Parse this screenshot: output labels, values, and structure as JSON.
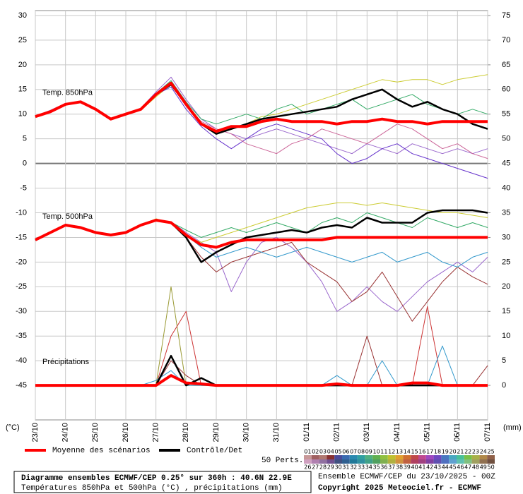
{
  "chart_data": {
    "type": "line",
    "title": "Diagramme ensembles ECMWF/CEP 0.25° sur 360h : 40.6N 22.9E",
    "subtitle": "Températures 850hPa et 500hPa (°C) , précipitations (mm)",
    "run_label": "Ensemble ECMWF/CEP du 23/10/2025 - 00Z",
    "copyright": "Copyright 2025 Meteociel.fr - ECMWF",
    "y_unit": "(°C)",
    "y2_unit": "(mm)",
    "members_label": "50 Perts.",
    "grid": true,
    "ylim": [
      -52,
      31
    ],
    "yticks": [
      -45,
      -40,
      -35,
      -30,
      -25,
      -20,
      -15,
      -10,
      -5,
      0,
      5,
      10,
      15,
      20,
      25,
      30
    ],
    "y2lim": [
      -7,
      76
    ],
    "y2ticks": [
      0,
      5,
      10,
      15,
      20,
      25,
      30,
      35,
      40,
      45,
      50,
      55,
      60,
      65,
      70,
      75
    ],
    "categories": [
      "23/10",
      null,
      "24/10",
      null,
      "25/10",
      null,
      "26/10",
      null,
      "27/10",
      null,
      "28/10",
      null,
      "29/10",
      null,
      "30/10",
      null,
      "31/10",
      null,
      "01/11",
      null,
      "02/11",
      null,
      "03/11",
      null,
      "04/11",
      null,
      "05/11",
      null,
      "06/11",
      null,
      "07/11"
    ],
    "panels": [
      {
        "label": "Temp. 850hPa",
        "series": [
          {
            "color": "#9966cc",
            "values": [
              9.6,
              10.8,
              12.2,
              12.4,
              11,
              8.8,
              10,
              11.2,
              14.5,
              17.5,
              13,
              9,
              7,
              6,
              5,
              6,
              7,
              6,
              5,
              4,
              3,
              2,
              4,
              3,
              2,
              4,
              3,
              2,
              3,
              2,
              3
            ]
          },
          {
            "color": "#cccc33",
            "values": [
              9.4,
              10.4,
              11.8,
              12.6,
              11.2,
              9.2,
              10.2,
              10.8,
              13.5,
              16,
              12,
              8,
              6.5,
              7,
              8,
              9.5,
              10,
              11,
              12,
              13,
              14,
              15,
              16,
              17,
              16.5,
              17,
              17,
              16,
              17,
              17.5,
              18
            ]
          },
          {
            "color": "#6633cc",
            "values": [
              9.5,
              10.6,
              12,
              12.3,
              10.8,
              9,
              9.8,
              11,
              14,
              15.5,
              11,
              7.5,
              5,
              3,
              5,
              7,
              8,
              7,
              6,
              5,
              2,
              0,
              1,
              3,
              4,
              2,
              1,
              0,
              -1,
              -2,
              -3
            ]
          },
          {
            "color": "#33aa66",
            "values": [
              9.5,
              10.5,
              12.1,
              12.5,
              11.1,
              9.1,
              10.1,
              11.1,
              14.2,
              16.8,
              12.5,
              9,
              8,
              9,
              10,
              9,
              11,
              12,
              10,
              11,
              12,
              13,
              11,
              12,
              13,
              14,
              12,
              11,
              10,
              11,
              10
            ]
          },
          {
            "color": "#cc6699",
            "values": [
              9.5,
              10.5,
              11.9,
              12.5,
              11,
              9,
              9.9,
              10.9,
              13.8,
              16.2,
              12,
              8.5,
              7,
              6,
              4,
              3,
              2,
              4,
              5,
              7,
              6,
              5,
              4,
              6,
              8,
              7,
              5,
              3,
              4,
              2,
              1
            ]
          },
          {
            "name": "Contrôle/Det",
            "color": "#000000",
            "values": [
              9.5,
              10.5,
              12,
              12.5,
              11,
              9,
              10,
              11,
              14,
              16,
              12,
              8,
              6,
              7,
              8,
              9,
              9.5,
              10,
              10.5,
              11,
              11.5,
              13,
              14,
              15,
              13,
              11.5,
              12.5,
              11,
              10,
              8,
              7
            ]
          },
          {
            "name": "Moyenne des scénarios",
            "color": "#ff0000",
            "values": [
              9.5,
              10.5,
              12,
              12.5,
              11,
              9,
              10,
              11,
              14,
              16.3,
              12,
              8,
              6.5,
              7.5,
              7.5,
              8.5,
              9,
              8.5,
              8.5,
              8.5,
              8,
              8.5,
              8.5,
              9,
              8.5,
              8.5,
              8,
              8.5,
              8.5,
              8.5,
              8.5
            ]
          }
        ]
      },
      {
        "label": "Temp. 500hPa",
        "series": [
          {
            "color": "#9966cc",
            "values": [
              -15.5,
              -14,
              -12.4,
              -13,
              -14,
              -14.4,
              -13.8,
              -12.4,
              -11.4,
              -11.8,
              -14,
              -16,
              -18,
              -26,
              -20,
              -16,
              -15,
              -17,
              -20,
              -24,
              -30,
              -28,
              -25,
              -28,
              -30,
              -27,
              -24,
              -22,
              -20,
              -22,
              -19
            ]
          },
          {
            "color": "#cccc33",
            "values": [
              -15.4,
              -13.8,
              -12.6,
              -13.2,
              -13.8,
              -14.6,
              -14.2,
              -12.6,
              -11.2,
              -12.2,
              -14.8,
              -16,
              -15,
              -14,
              -13,
              -12,
              -11,
              -10,
              -9,
              -8.5,
              -8,
              -8,
              -8.5,
              -8,
              -8.5,
              -9,
              -9.5,
              -10,
              -10,
              -10.5,
              -11
            ]
          },
          {
            "color": "#993333",
            "values": [
              -15.6,
              -14.2,
              -12.4,
              -12.8,
              -14.2,
              -14.4,
              -13.9,
              -12.5,
              -11.6,
              -12,
              -15,
              -19,
              -22,
              -20,
              -19,
              -18,
              -17,
              -16,
              -20,
              -22,
              -24,
              -28,
              -26,
              -22,
              -27,
              -32,
              -28,
              -24,
              -21,
              -23,
              -24.5
            ]
          },
          {
            "color": "#33aa66",
            "values": [
              -15.5,
              -14.1,
              -12.5,
              -13,
              -14,
              -14.5,
              -14,
              -12.4,
              -11.5,
              -11.9,
              -13.5,
              -15,
              -14,
              -13,
              -14,
              -13,
              -12,
              -13,
              -14,
              -12,
              -11,
              -12,
              -10,
              -11,
              -12,
              -13,
              -11,
              -12,
              -13,
              -12,
              -13
            ]
          },
          {
            "color": "#3399cc",
            "values": [
              -15.5,
              -13.9,
              -12.6,
              -13,
              -14.1,
              -14.5,
              -14,
              -12.6,
              -11.4,
              -12.1,
              -14.5,
              -17,
              -19,
              -18,
              -17,
              -18,
              -19,
              -18,
              -17,
              -18,
              -19,
              -20,
              -19,
              -18,
              -20,
              -19,
              -18,
              -20,
              -21,
              -19,
              -18
            ]
          },
          {
            "color": "#000000",
            "values": [
              -15.5,
              -14,
              -12.5,
              -13,
              -14,
              -14.5,
              -14,
              -12.5,
              -11.5,
              -12,
              -15,
              -20,
              -18,
              -16.5,
              -15,
              -14.5,
              -14,
              -13.5,
              -14,
              -13,
              -12.5,
              -13,
              -11,
              -12,
              -12,
              -12,
              -10,
              -9.5,
              -9.5,
              -9.5,
              -10
            ]
          },
          {
            "color": "#ff0000",
            "values": [
              -15.5,
              -14,
              -12.5,
              -13,
              -14,
              -14.5,
              -14,
              -12.5,
              -11.5,
              -12,
              -14.5,
              -16.5,
              -17,
              -16,
              -15.5,
              -15.5,
              -15.5,
              -15.5,
              -15.5,
              -15.5,
              -15,
              -15,
              -15,
              -15,
              -15,
              -15,
              -15,
              -15,
              -15,
              -15,
              -15
            ]
          }
        ]
      },
      {
        "label": "Précipitations",
        "series": [
          {
            "axis": "y2",
            "color": "#999933",
            "values": [
              0,
              0,
              0,
              0,
              0,
              0,
              0,
              0,
              0,
              20,
              0,
              0,
              0,
              0,
              0,
              0,
              0,
              0,
              0,
              0,
              0,
              0,
              0,
              0,
              0,
              0,
              0,
              0,
              0,
              0,
              0
            ]
          },
          {
            "axis": "y2",
            "color": "#cc3333",
            "values": [
              0,
              0,
              0,
              0,
              0,
              0,
              0,
              0,
              0,
              10,
              15,
              0,
              0,
              0,
              0,
              0,
              0,
              0,
              0,
              0,
              0,
              0,
              0,
              0,
              0,
              0,
              16,
              0,
              0,
              0,
              0
            ]
          },
          {
            "axis": "y2",
            "color": "#993333",
            "values": [
              0,
              0,
              0,
              0,
              0,
              0,
              0,
              0,
              0,
              5,
              2,
              0,
              0,
              0,
              0,
              0,
              0,
              0,
              0,
              0,
              0,
              0,
              10,
              0,
              0,
              0,
              0,
              0,
              0,
              0,
              4
            ]
          },
          {
            "axis": "y2",
            "color": "#3399cc",
            "values": [
              0,
              0,
              0,
              0,
              0,
              0,
              0,
              0,
              1,
              3,
              0,
              0,
              0,
              0,
              0,
              0,
              0,
              0,
              0,
              0,
              2,
              0,
              0,
              5,
              0,
              0,
              0,
              8,
              0,
              0,
              0
            ]
          },
          {
            "axis": "y2",
            "color": "#000000",
            "values": [
              0,
              0,
              0,
              0,
              0,
              0,
              0,
              0,
              0,
              6,
              0,
              1.5,
              0,
              0,
              0,
              0,
              0,
              0,
              0,
              0,
              0,
              0,
              0,
              0,
              0,
              0,
              0,
              0,
              0,
              0,
              0
            ]
          },
          {
            "axis": "y2",
            "color": "#ff0000",
            "values": [
              0,
              0,
              0,
              0,
              0,
              0,
              0,
              0,
              0,
              2,
              0.5,
              0.3,
              0,
              0,
              0,
              0,
              0,
              0,
              0,
              0,
              0.3,
              0,
              0,
              0,
              0,
              0.5,
              0.5,
              0,
              0,
              0,
              0
            ]
          }
        ]
      }
    ],
    "members": [
      {
        "name": "01",
        "color": "#c89898"
      },
      {
        "name": "02",
        "color": "#a06060"
      },
      {
        "name": "03",
        "color": "#b07870"
      },
      {
        "name": "04",
        "color": "#883030"
      },
      {
        "name": "05",
        "color": "#4a4a9a"
      },
      {
        "name": "06",
        "color": "#3a6ab0"
      },
      {
        "name": "07",
        "color": "#2a8ab0"
      },
      {
        "name": "08",
        "color": "#30a0a0"
      },
      {
        "name": "09",
        "color": "#50b080"
      },
      {
        "name": "10",
        "color": "#60b050"
      },
      {
        "name": "11",
        "color": "#90c040"
      },
      {
        "name": "12",
        "color": "#c0c030"
      },
      {
        "name": "13",
        "color": "#e0a030"
      },
      {
        "name": "14",
        "color": "#d07030"
      },
      {
        "name": "15",
        "color": "#c04848"
      },
      {
        "name": "16",
        "color": "#c04890"
      },
      {
        "name": "17",
        "color": "#a048c0"
      },
      {
        "name": "18",
        "color": "#7048c0"
      },
      {
        "name": "19",
        "color": "#4878c0"
      },
      {
        "name": "20",
        "color": "#48a8c0"
      },
      {
        "name": "21",
        "color": "#48c098"
      },
      {
        "name": "22",
        "color": "#78c048"
      },
      {
        "name": "23",
        "color": "#a8b048"
      },
      {
        "name": "24",
        "color": "#b08848"
      },
      {
        "name": "25",
        "color": "#906048"
      },
      {
        "name": "26",
        "color": "#d0a0c0"
      },
      {
        "name": "27",
        "color": "#b080b0"
      },
      {
        "name": "28",
        "color": "#9070a0"
      },
      {
        "name": "29",
        "color": "#705090"
      },
      {
        "name": "30",
        "color": "#405080"
      },
      {
        "name": "31",
        "color": "#306090"
      },
      {
        "name": "32",
        "color": "#207898"
      },
      {
        "name": "33",
        "color": "#3090a0"
      },
      {
        "name": "34",
        "color": "#40a088"
      },
      {
        "name": "35",
        "color": "#50a060"
      },
      {
        "name": "36",
        "color": "#80b050"
      },
      {
        "name": "37",
        "color": "#b0b040"
      },
      {
        "name": "38",
        "color": "#d09040"
      },
      {
        "name": "39",
        "color": "#c06040"
      },
      {
        "name": "40",
        "color": "#b04060"
      },
      {
        "name": "41",
        "color": "#a04080"
      },
      {
        "name": "42",
        "color": "#8040a0"
      },
      {
        "name": "43",
        "color": "#6050b0"
      },
      {
        "name": "44",
        "color": "#5070c0"
      },
      {
        "name": "45",
        "color": "#60a0d0"
      },
      {
        "name": "46",
        "color": "#60c0b0"
      },
      {
        "name": "47",
        "color": "#80c080"
      },
      {
        "name": "48",
        "color": "#a0a060"
      },
      {
        "name": "49",
        "color": "#907050"
      },
      {
        "name": "50",
        "color": "#705040"
      }
    ]
  }
}
